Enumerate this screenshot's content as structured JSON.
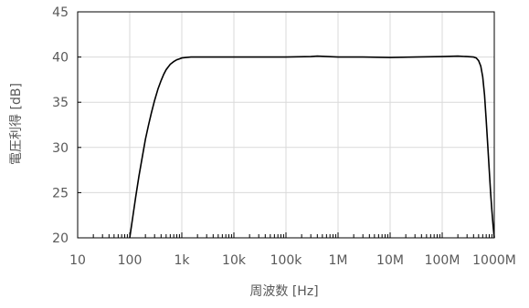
{
  "chart_data": {
    "type": "line",
    "title": "",
    "xlabel": "周波数 [Hz]",
    "ylabel": "電圧利得 [dB]",
    "x_scale": "log",
    "xlim": [
      10,
      1000000000
    ],
    "ylim": [
      20,
      45
    ],
    "x_ticks": [
      10,
      100,
      1000,
      10000,
      100000,
      1000000,
      10000000,
      100000000,
      1000000000
    ],
    "x_tick_labels": [
      "10",
      "100",
      "1k",
      "10k",
      "100k",
      "1M",
      "10M",
      "100M",
      "1000M"
    ],
    "y_ticks": [
      20,
      25,
      30,
      35,
      40,
      45
    ],
    "y_tick_labels": [
      "20",
      "25",
      "30",
      "35",
      "40",
      "45"
    ],
    "grid": true,
    "legend": "none",
    "line_color": "#000000",
    "grid_color": "#d9d9d9",
    "series": [
      {
        "x": [
          100,
          115,
          130,
          150,
          170,
          200,
          230,
          260,
          300,
          350,
          400,
          450,
          500,
          600,
          700,
          800,
          900,
          1000,
          1200,
          1500,
          2000,
          3000,
          5000,
          10000,
          30000,
          100000,
          300000,
          400000,
          1000000,
          3000000,
          10000000,
          30000000,
          100000000,
          200000000,
          300000000,
          400000000,
          450000000,
          500000000,
          550000000,
          600000000,
          650000000,
          700000000,
          750000000,
          800000000,
          850000000,
          900000000,
          950000000,
          1000000000
        ],
        "y": [
          20.0,
          22.4,
          24.5,
          26.8,
          28.6,
          30.9,
          32.5,
          33.8,
          35.2,
          36.5,
          37.4,
          38.1,
          38.6,
          39.2,
          39.5,
          39.7,
          39.8,
          39.9,
          39.95,
          40.0,
          40.0,
          40.0,
          40.0,
          40.0,
          40.0,
          40.0,
          40.05,
          40.1,
          40.0,
          40.0,
          39.95,
          40.0,
          40.05,
          40.1,
          40.05,
          40.0,
          39.9,
          39.6,
          39.0,
          37.8,
          35.8,
          33.0,
          30.2,
          27.5,
          25.0,
          23.0,
          21.3,
          20.0
        ]
      }
    ]
  }
}
